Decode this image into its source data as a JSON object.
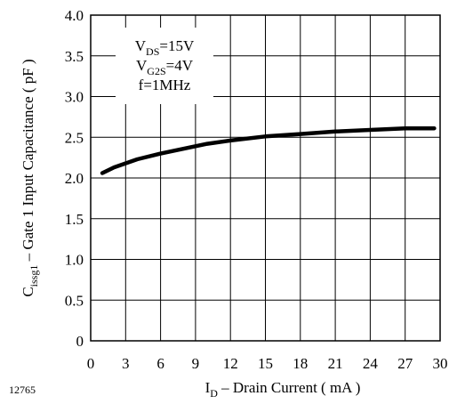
{
  "chart_data": {
    "type": "line",
    "xlabel": {
      "main": "I",
      "sub": "D",
      "rest": " – Drain Current ( mA )"
    },
    "ylabel": {
      "main": "C",
      "sub": "issg1",
      "rest": " – Gate 1 Input Capacitance ( pF )"
    },
    "xlim": [
      0,
      30
    ],
    "ylim": [
      0,
      4.0
    ],
    "x_ticks": [
      "0",
      "3",
      "6",
      "9",
      "12",
      "15",
      "18",
      "21",
      "24",
      "27",
      "30"
    ],
    "y_ticks": [
      "0",
      "0.5",
      "1.0",
      "1.5",
      "2.0",
      "2.5",
      "3.0",
      "3.5",
      "4.0"
    ],
    "grid": true,
    "annotations": [
      {
        "main": "V",
        "sub": "DS",
        "rest": "=15V"
      },
      {
        "main": "V",
        "sub": "G2S",
        "rest": "=4V"
      },
      {
        "main": "f=1MHz",
        "sub": "",
        "rest": ""
      }
    ],
    "series": [
      {
        "x": [
          1,
          2,
          4,
          6,
          8,
          10,
          12,
          15,
          18,
          21,
          24,
          27,
          29.5
        ],
        "values": [
          2.06,
          2.13,
          2.23,
          2.3,
          2.36,
          2.42,
          2.46,
          2.51,
          2.54,
          2.57,
          2.59,
          2.61,
          2.61
        ]
      }
    ]
  },
  "figure_id": "12765"
}
